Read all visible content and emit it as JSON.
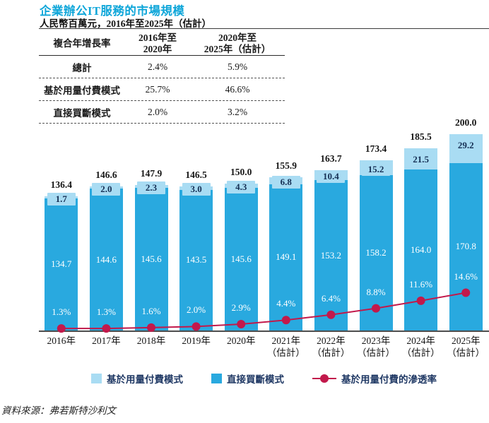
{
  "page": {
    "title": "企業辦公IT服務的市場規模",
    "subtitle": "人民幣百萬元，2016年至2025年（估計）",
    "source": "資料來源：弗若斯特沙利文"
  },
  "cagr_table": {
    "header": {
      "col1": "複合年增長率",
      "col2_line1": "2016年至",
      "col2_line2": "2020年",
      "col3_line1": "2020年至",
      "col3_line2": "2025年（估計）"
    },
    "rows": [
      {
        "label": "總計",
        "v1": "2.4%",
        "v2": "5.9%"
      },
      {
        "label": "基於用量付費模式",
        "v1": "25.7%",
        "v2": "46.6%"
      },
      {
        "label": "直接買斷模式",
        "v1": "2.0%",
        "v2": "3.2%"
      }
    ]
  },
  "chart_data": {
    "type": "bar",
    "subtype": "stacked-bars-with-percentage-line",
    "title": "企業辦公IT服務的市場規模",
    "ylabel": "人民幣百萬元",
    "grid": false,
    "legend_position": "bottom",
    "categories": [
      {
        "label": "2016年",
        "sublabel": ""
      },
      {
        "label": "2017年",
        "sublabel": ""
      },
      {
        "label": "2018年",
        "sublabel": ""
      },
      {
        "label": "2019年",
        "sublabel": ""
      },
      {
        "label": "2020年",
        "sublabel": ""
      },
      {
        "label": "2021年",
        "sublabel": "（估計）"
      },
      {
        "label": "2022年",
        "sublabel": "（估計）"
      },
      {
        "label": "2023年",
        "sublabel": "（估計）"
      },
      {
        "label": "2024年",
        "sublabel": "（估計）"
      },
      {
        "label": "2025年",
        "sublabel": "（估計）"
      }
    ],
    "series": [
      {
        "name": "直接買斷模式",
        "stack_order": "bottom",
        "values": [
          134.7,
          144.6,
          145.6,
          143.5,
          145.6,
          149.1,
          153.2,
          158.2,
          164.0,
          170.8
        ]
      },
      {
        "name": "基於用量付費模式",
        "stack_order": "top",
        "values": [
          1.7,
          2.0,
          2.3,
          3.0,
          4.3,
          6.8,
          10.4,
          15.2,
          21.5,
          29.2
        ]
      }
    ],
    "totals": [
      136.4,
      146.6,
      147.9,
      146.5,
      150.0,
      155.9,
      163.7,
      173.4,
      185.5,
      200.0
    ],
    "line_series": {
      "name": "基於用量付費的滲透率",
      "unit": "%",
      "values_pct": [
        1.3,
        1.3,
        1.6,
        2.0,
        2.9,
        4.4,
        6.4,
        8.8,
        11.6,
        14.6
      ]
    },
    "colors": {
      "dark_blue": "#29a9df",
      "light_blue": "#a9dcf3",
      "line_red": "#c2194b",
      "title_teal": "#0ea6d9",
      "legend_text": "#1f3864"
    },
    "legend": [
      {
        "label": "基於用量付費模式",
        "swatch": "light"
      },
      {
        "label": "直接買斷模式",
        "swatch": "dark"
      },
      {
        "label": "基於用量付費的滲透率",
        "swatch": "line"
      }
    ]
  }
}
